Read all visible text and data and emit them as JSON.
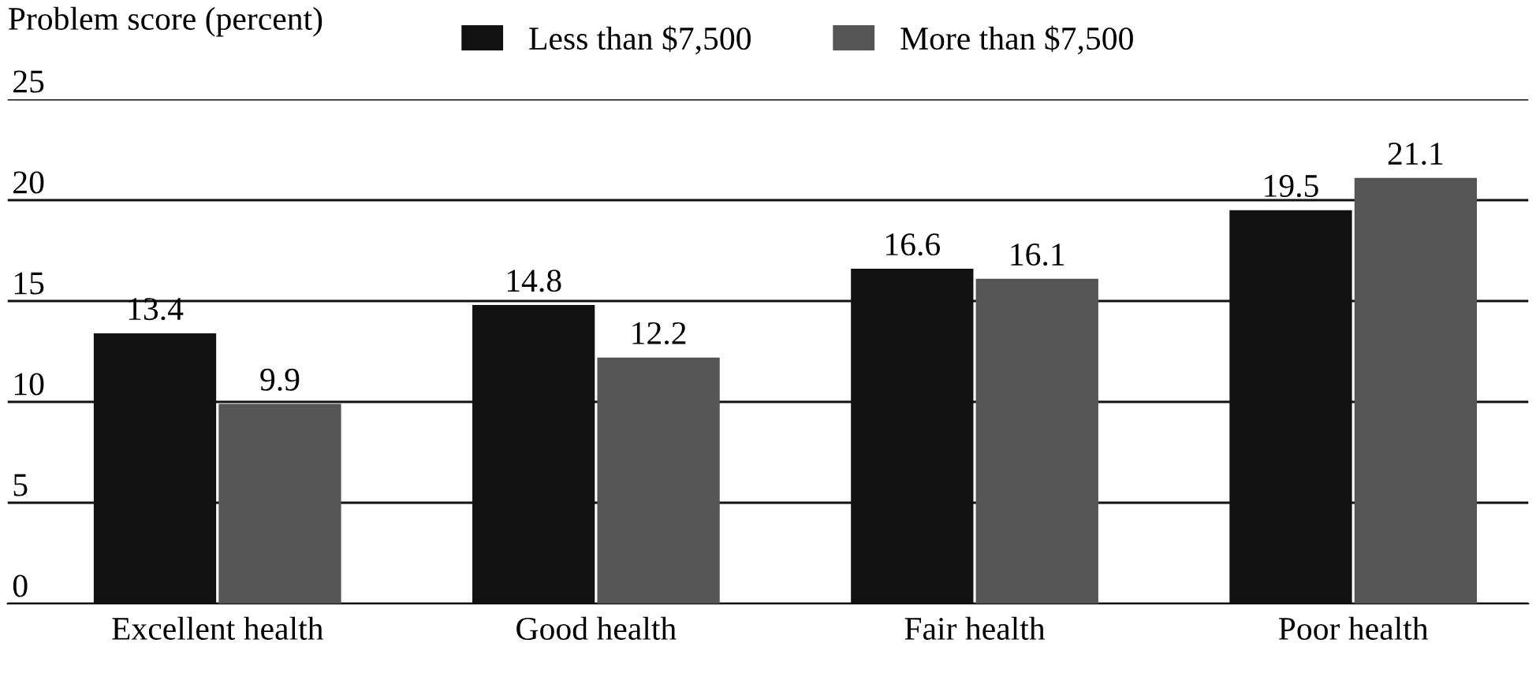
{
  "chart_data": {
    "type": "bar",
    "ylabel": "Problem score (percent)",
    "categories": [
      "Excellent health",
      "Good health",
      "Fair health",
      "Poor health"
    ],
    "series": [
      {
        "name": "Less than $7,500",
        "color": "#111111",
        "values": [
          13.4,
          14.8,
          16.6,
          19.5
        ]
      },
      {
        "name": "More than $7,500",
        "color": "#555555",
        "values": [
          9.9,
          12.2,
          16.1,
          21.1
        ]
      }
    ],
    "ylim": [
      0,
      25
    ],
    "yticks": [
      0,
      5,
      10,
      15,
      20,
      25
    ],
    "grid": "y",
    "legend": "top",
    "data_labels": true
  }
}
